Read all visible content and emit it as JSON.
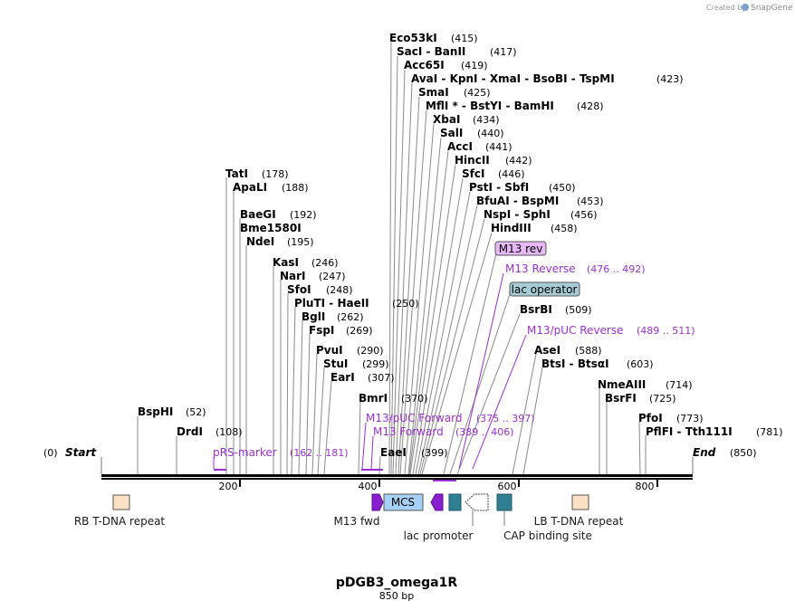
{
  "credit": {
    "created_by": "Created by",
    "brand": "SnapGene"
  },
  "map": {
    "name": "pDGB3_omega1R",
    "length_text": "850 bp",
    "length": 850,
    "start_label": "Start",
    "start_pos": "(0)",
    "end_label": "End",
    "end_pos": "(850)",
    "ticks": [
      "200",
      "400",
      "600",
      "800"
    ]
  },
  "sites": [
    {
      "id": "bsphi",
      "name": "BspHI",
      "pos": "(52)"
    },
    {
      "id": "drdi",
      "name": "DrdI",
      "pos": "(108)"
    },
    {
      "id": "tati",
      "name": "TatI",
      "pos": "(178)"
    },
    {
      "id": "apali",
      "name": "ApaLI",
      "pos": "(188)"
    },
    {
      "id": "baegi",
      "name": "BaeGI",
      "pos": "(192)"
    },
    {
      "id": "bme1580i",
      "name": "Bme1580I",
      "pos": ""
    },
    {
      "id": "ndei",
      "name": "NdeI",
      "pos": "(195)"
    },
    {
      "id": "kasi",
      "name": "KasI",
      "pos": "(246)"
    },
    {
      "id": "nari",
      "name": "NarI",
      "pos": "(247)"
    },
    {
      "id": "sfoi",
      "name": "SfoI",
      "pos": "(248)"
    },
    {
      "id": "plutihaeii",
      "name": "PluTI  -  HaeII",
      "pos": "(250)"
    },
    {
      "id": "bgli",
      "name": "BglI",
      "pos": "(262)"
    },
    {
      "id": "fspi",
      "name": "FspI",
      "pos": "(269)"
    },
    {
      "id": "pvui",
      "name": "PvuI",
      "pos": "(290)"
    },
    {
      "id": "stui",
      "name": "StuI",
      "pos": "(299)"
    },
    {
      "id": "eari",
      "name": "EarI",
      "pos": "(307)"
    },
    {
      "id": "bmri",
      "name": "BmrI",
      "pos": "(370)"
    },
    {
      "id": "eaei",
      "name": "EaeI",
      "pos": "(399)"
    },
    {
      "id": "eco53ki",
      "name": "Eco53kI",
      "pos": "(415)"
    },
    {
      "id": "sacibanii",
      "name": "SacI  -  BanII",
      "pos": "(417)"
    },
    {
      "id": "acc65i",
      "name": "Acc65I",
      "pos": "(419)"
    },
    {
      "id": "avai_group",
      "name": "AvaI  -  KpnI  -  XmaI  -  BsoBI  -  TspMI",
      "pos": "(423)"
    },
    {
      "id": "smai",
      "name": "SmaI",
      "pos": "(425)"
    },
    {
      "id": "mfli_group",
      "name": "MflI * - BstYI  -  BamHI",
      "pos": "(428)"
    },
    {
      "id": "xbai",
      "name": "XbaI",
      "pos": "(434)"
    },
    {
      "id": "sali",
      "name": "SalI",
      "pos": "(440)"
    },
    {
      "id": "acci",
      "name": "AccI",
      "pos": "(441)"
    },
    {
      "id": "hincii",
      "name": "HincII",
      "pos": "(442)"
    },
    {
      "id": "sfci",
      "name": "SfcI",
      "pos": "(446)"
    },
    {
      "id": "pstisbfi",
      "name": "PstI  -  SbfI",
      "pos": "(450)"
    },
    {
      "id": "bfuaibspmi",
      "name": "BfuAI  -  BspMI",
      "pos": "(453)"
    },
    {
      "id": "nspisphi",
      "name": "NspI  -  SphI",
      "pos": "(456)"
    },
    {
      "id": "hindiii",
      "name": "HindIII",
      "pos": "(458)"
    },
    {
      "id": "bsrbi",
      "name": "BsrBI",
      "pos": "(509)"
    },
    {
      "id": "asei",
      "name": "AseI",
      "pos": "(588)"
    },
    {
      "id": "btsibtsai",
      "name": "BtsI  -  BtsαI",
      "pos": "(603)"
    },
    {
      "id": "nmeaiii",
      "name": "NmeAIII",
      "pos": "(714)"
    },
    {
      "id": "bsrfi",
      "name": "BsrFI",
      "pos": "(725)"
    },
    {
      "id": "pfoi",
      "name": "PfoI",
      "pos": "(773)"
    },
    {
      "id": "pflfi",
      "name": "PflFI  -  Tth111I",
      "pos": "(781)"
    }
  ],
  "primers": [
    {
      "id": "prs_marker",
      "name": "pRS-marker",
      "pos": "(162 .. 181)"
    },
    {
      "id": "m13puc_fwd",
      "name": "M13/pUC Forward",
      "pos": "(375 .. 397)"
    },
    {
      "id": "m13_fwd_primer",
      "name": "M13 Forward",
      "pos": "(389 .. 406)"
    },
    {
      "id": "m13_rev_primer",
      "name": "M13 Reverse",
      "pos": "(476 .. 492)"
    },
    {
      "id": "m13puc_rev",
      "name": "M13/pUC Reverse",
      "pos": "(489 .. 511)"
    }
  ],
  "tags": {
    "m13_rev": "M13 rev",
    "lac_operator": "lac operator"
  },
  "features": {
    "rb_tdna": "RB T-DNA repeat",
    "m13_fwd": "M13 fwd",
    "mcs": "MCS",
    "lac_promoter": "lac promoter",
    "cap_site": "CAP binding site",
    "lb_tdna": "LB T-DNA repeat"
  },
  "colors": {
    "primer": "#9b30d0",
    "m13_rev_tag": "#e6b8f5",
    "lac_operator_tag": "#a6cdd6",
    "mcs_box": "#a6d0f5",
    "tdna_box": "#fce0c4",
    "feature_teal": "#2e7f92",
    "arrow_purple": "#8a1fd0"
  }
}
